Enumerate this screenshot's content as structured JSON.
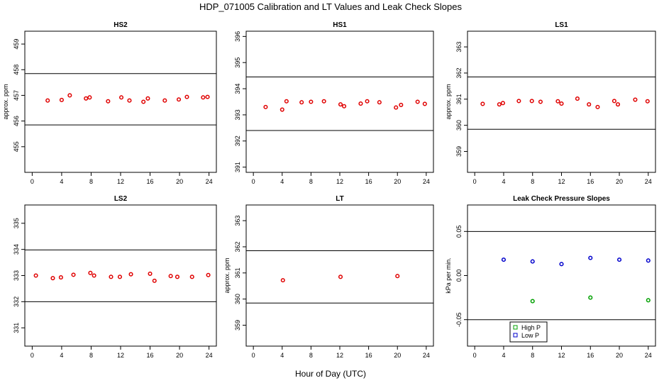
{
  "figure": {
    "title": "HDP_071005  Calibration and LT Values and Leak Check Slopes",
    "xlabel": "Hour of Day (UTC)"
  },
  "chart_data": [
    {
      "type": "scatter",
      "title": "HS2",
      "ylabel": "approx. ppm",
      "xlim": [
        -1,
        25
      ],
      "ylim": [
        454.0,
        459.5
      ],
      "xticks": [
        0,
        4,
        8,
        12,
        16,
        20,
        24
      ],
      "yticks": [
        455,
        456,
        457,
        458,
        459
      ],
      "hlines": [
        457.85,
        455.85
      ],
      "series": [
        {
          "color": "#e00000",
          "x": [
            2.1,
            4.0,
            5.1,
            7.3,
            7.8,
            10.3,
            12.1,
            13.2,
            15.1,
            15.7,
            18.0,
            19.9,
            21.0,
            23.2,
            23.8
          ],
          "y": [
            456.8,
            456.82,
            457.0,
            456.88,
            456.92,
            456.77,
            456.92,
            456.8,
            456.75,
            456.88,
            456.8,
            456.84,
            456.94,
            456.92,
            456.94
          ]
        }
      ]
    },
    {
      "type": "scatter",
      "title": "HS1",
      "ylabel": "",
      "xlim": [
        -1,
        25
      ],
      "ylim": [
        390.8,
        396.2
      ],
      "xticks": [
        0,
        4,
        8,
        12,
        16,
        20,
        24
      ],
      "yticks": [
        391,
        392,
        393,
        394,
        395,
        396
      ],
      "hlines": [
        394.45,
        392.4
      ],
      "series": [
        {
          "color": "#e00000",
          "x": [
            1.7,
            4.0,
            4.6,
            6.7,
            8.0,
            9.8,
            12.1,
            12.6,
            14.9,
            15.8,
            17.5,
            19.8,
            20.5,
            22.8,
            23.8
          ],
          "y": [
            393.3,
            393.2,
            393.52,
            393.48,
            393.5,
            393.52,
            393.4,
            393.33,
            393.43,
            393.52,
            393.48,
            393.28,
            393.38,
            393.5,
            393.42
          ]
        }
      ]
    },
    {
      "type": "scatter",
      "title": "LS1",
      "ylabel": "approx. ppm",
      "xlim": [
        -1,
        25
      ],
      "ylim": [
        358.2,
        363.6
      ],
      "xticks": [
        0,
        4,
        8,
        12,
        16,
        20,
        24
      ],
      "yticks": [
        359,
        360,
        361,
        362,
        363
      ],
      "hlines": [
        361.85,
        359.85
      ],
      "series": [
        {
          "color": "#e00000",
          "x": [
            1.1,
            3.4,
            3.9,
            6.1,
            7.9,
            9.1,
            11.5,
            12.0,
            14.2,
            15.8,
            17.0,
            19.3,
            19.8,
            22.2,
            23.9
          ],
          "y": [
            360.82,
            360.8,
            360.85,
            360.93,
            360.93,
            360.9,
            360.92,
            360.83,
            361.02,
            360.8,
            360.7,
            360.93,
            360.8,
            360.98,
            360.92
          ]
        }
      ]
    },
    {
      "type": "scatter",
      "title": "LS2",
      "ylabel": "",
      "xlim": [
        -1,
        25
      ],
      "ylim": [
        330.3,
        335.7
      ],
      "xticks": [
        0,
        4,
        8,
        12,
        16,
        20,
        24
      ],
      "yticks": [
        331,
        332,
        333,
        334,
        335
      ],
      "hlines": [
        333.98,
        332.0
      ],
      "series": [
        {
          "color": "#e00000",
          "x": [
            0.5,
            2.8,
            3.9,
            5.6,
            7.9,
            8.4,
            10.7,
            11.9,
            13.4,
            16.0,
            16.6,
            18.8,
            19.7,
            21.7,
            23.9
          ],
          "y": [
            333.0,
            332.9,
            332.93,
            333.03,
            333.1,
            333.0,
            332.95,
            332.95,
            333.05,
            333.07,
            332.8,
            332.98,
            332.95,
            332.95,
            333.02
          ]
        }
      ]
    },
    {
      "type": "scatter",
      "title": "LT",
      "ylabel": "approx. ppm",
      "xlim": [
        -1,
        25
      ],
      "ylim": [
        358.2,
        363.6
      ],
      "xticks": [
        0,
        4,
        8,
        12,
        16,
        20,
        24
      ],
      "yticks": [
        359,
        360,
        361,
        362,
        363
      ],
      "hlines": [
        361.85,
        359.85
      ],
      "series": [
        {
          "color": "#e00000",
          "x": [
            4.1,
            12.1,
            20.0
          ],
          "y": [
            360.72,
            360.85,
            360.88
          ]
        }
      ]
    },
    {
      "type": "scatter",
      "title": "Leak Check Pressure Slopes",
      "ylabel": "kPa per min.",
      "xlim": [
        -1,
        25
      ],
      "ylim": [
        -0.08,
        0.08
      ],
      "xticks": [
        0,
        4,
        8,
        12,
        16,
        20,
        24
      ],
      "ytick_labels": [
        "-0.05",
        "0.00",
        "0.05"
      ],
      "yticks": [
        -0.05,
        0.0,
        0.05
      ],
      "hlines": [
        0.05,
        -0.05
      ],
      "series": [
        {
          "name": "High P",
          "color": "#00a000",
          "x": [
            8.0,
            16.0,
            24.0
          ],
          "y": [
            -0.029,
            -0.025,
            -0.028
          ]
        },
        {
          "name": "Low P",
          "color": "#0000cc",
          "x": [
            4.0,
            8.0,
            12.0,
            16.0,
            20.0,
            24.0
          ],
          "y": [
            0.018,
            0.016,
            0.013,
            0.02,
            0.018,
            0.017
          ]
        }
      ],
      "legend_position": "bottom-center"
    }
  ]
}
